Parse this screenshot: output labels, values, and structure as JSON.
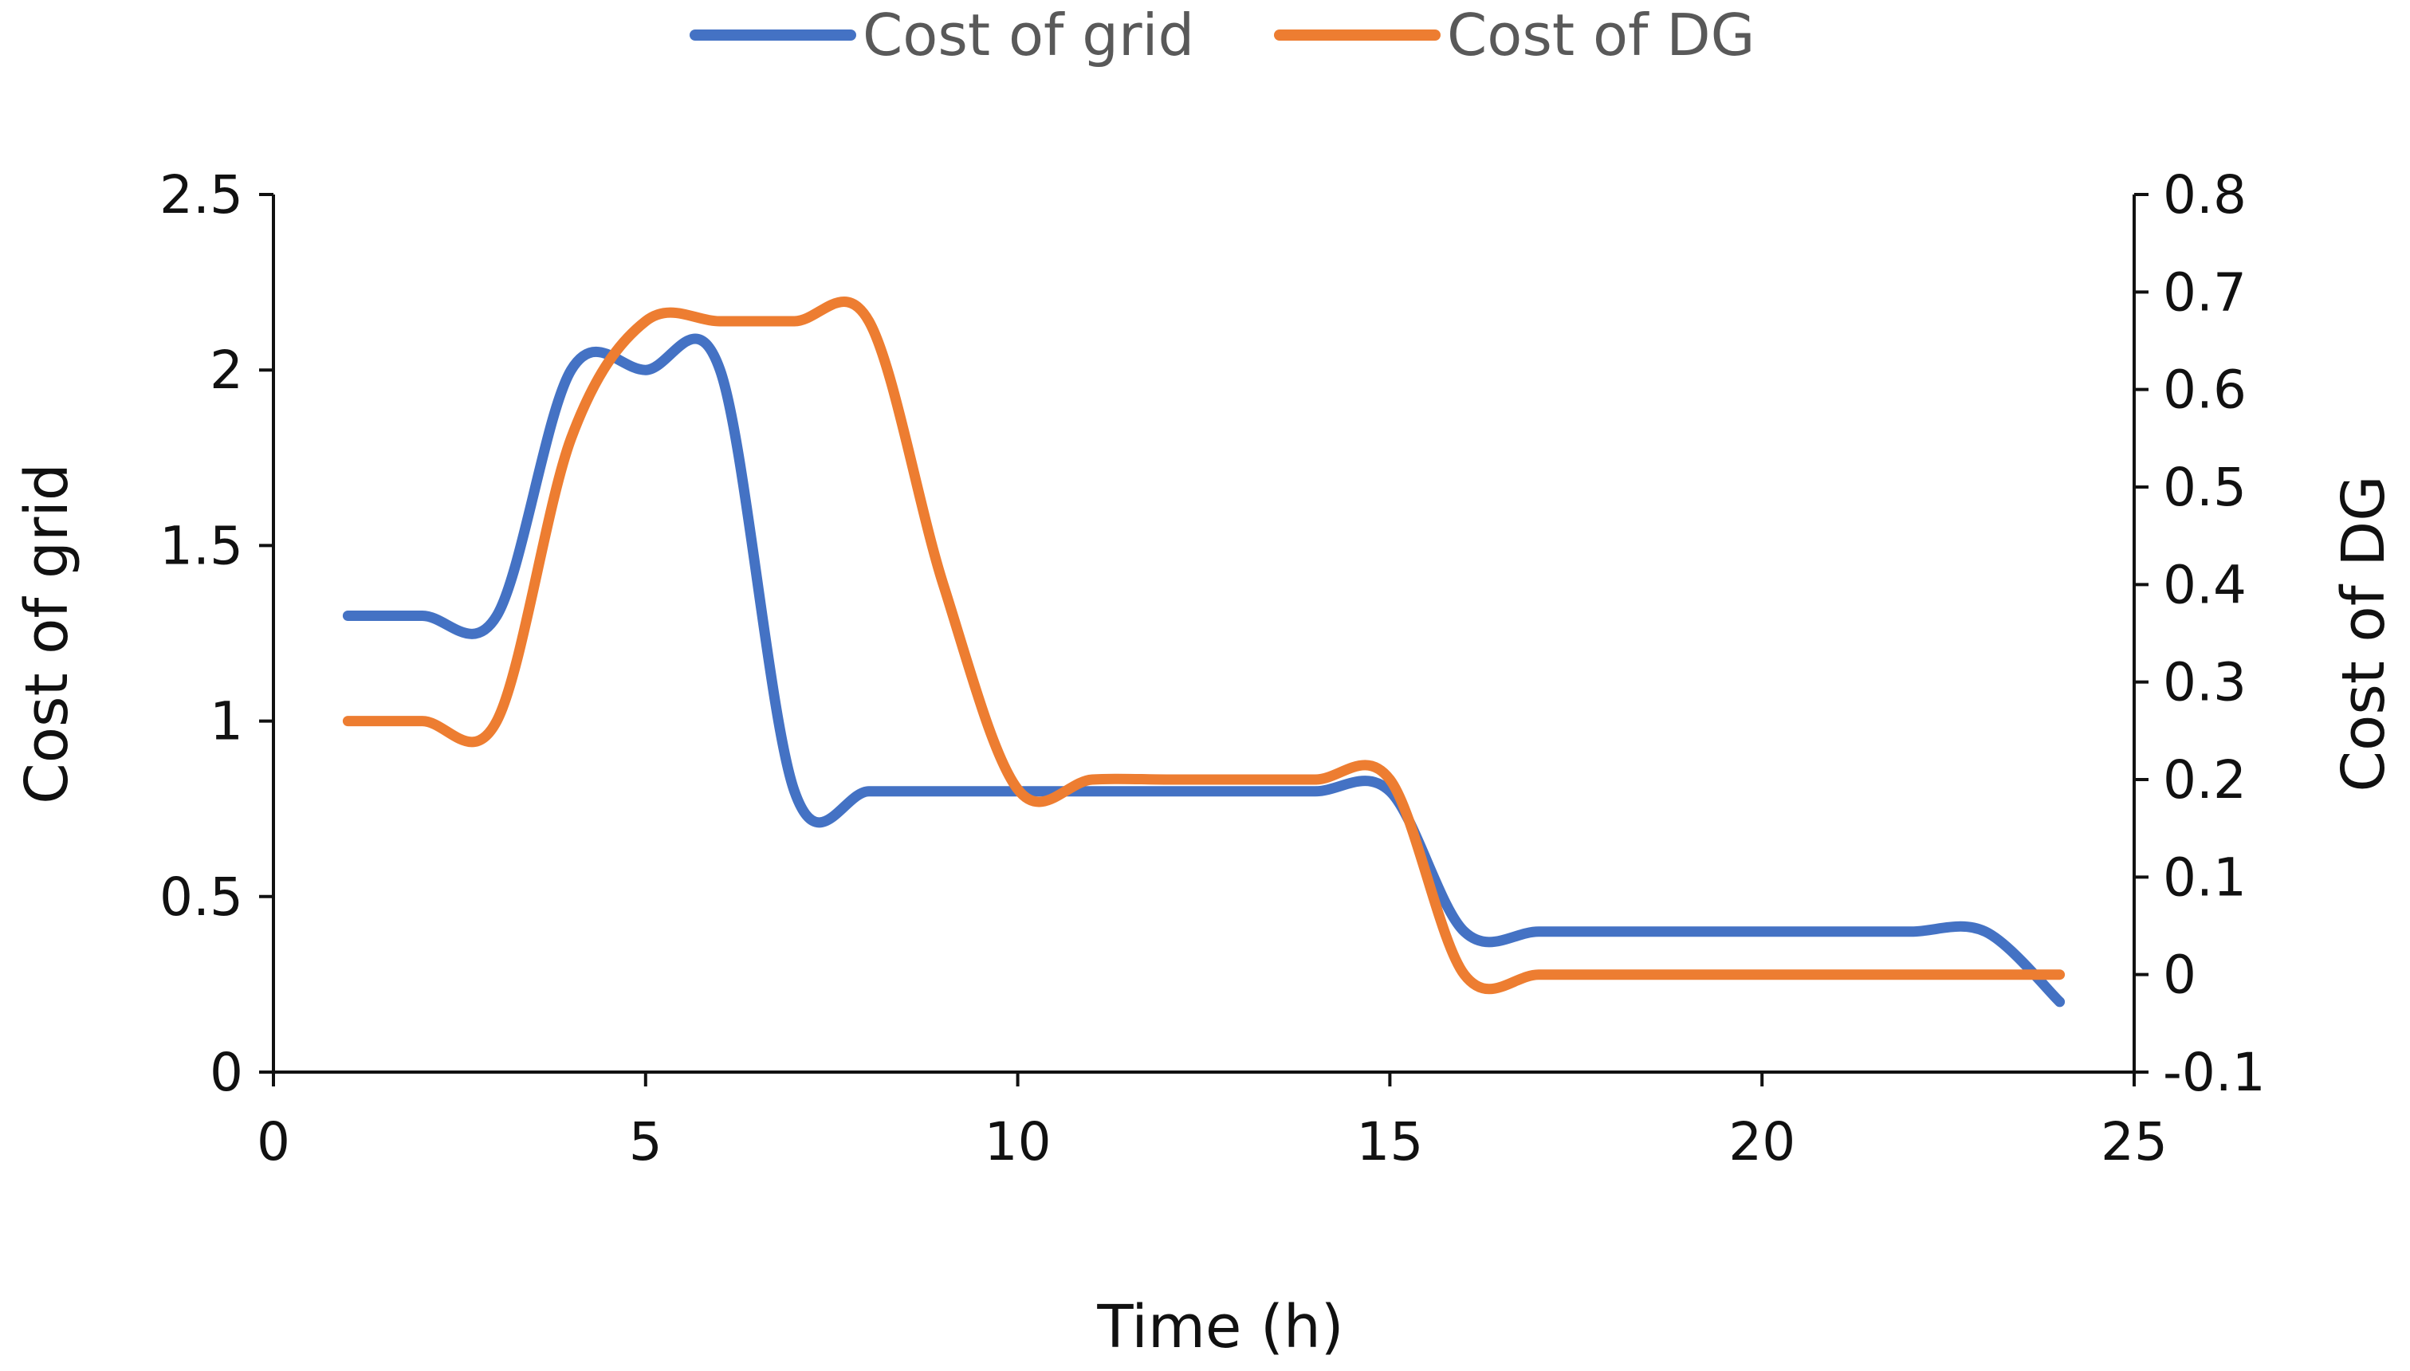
{
  "chart_data": {
    "type": "line",
    "title": "",
    "xlabel": "Time (h)",
    "ylabel": "Cost of grid",
    "y2label": "Cost of DG",
    "xlim": [
      0,
      25
    ],
    "ylim": [
      0,
      2.5
    ],
    "y2lim": [
      -0.1,
      0.8
    ],
    "xticks": [
      "0",
      "5",
      "10",
      "15",
      "20",
      "25"
    ],
    "yticks": [
      "0",
      "0.5",
      "1",
      "1.5",
      "2",
      "2.5"
    ],
    "y2ticks": [
      "-0.1",
      "0",
      "0.1",
      "0.2",
      "0.3",
      "0.4",
      "0.5",
      "0.6",
      "0.7",
      "0.8"
    ],
    "legend_position": "top-center",
    "grid": false,
    "x": [
      1,
      2,
      3,
      4,
      5,
      6,
      7,
      8,
      9,
      10,
      11,
      12,
      13,
      14,
      15,
      16,
      17,
      18,
      19,
      20,
      21,
      22,
      23,
      24
    ],
    "series": [
      {
        "name": "Cost of grid",
        "axis": "left",
        "color": "#4472C4",
        "values": [
          1.3,
          1.3,
          1.3,
          2.0,
          2.0,
          2.0,
          0.8,
          0.8,
          0.8,
          0.8,
          0.8,
          0.8,
          0.8,
          0.8,
          0.8,
          0.4,
          0.4,
          0.4,
          0.4,
          0.4,
          0.4,
          0.4,
          0.4,
          0.2
        ]
      },
      {
        "name": "Cost of DG",
        "axis": "right",
        "color": "#ED7D31",
        "values": [
          0.26,
          0.26,
          0.26,
          0.55,
          0.67,
          0.67,
          0.67,
          0.67,
          0.4,
          0.19,
          0.2,
          0.2,
          0.2,
          0.2,
          0.2,
          0.0,
          0.0,
          0.0,
          0.0,
          0.0,
          0.0,
          0.0,
          0.0,
          0.0
        ]
      }
    ]
  }
}
